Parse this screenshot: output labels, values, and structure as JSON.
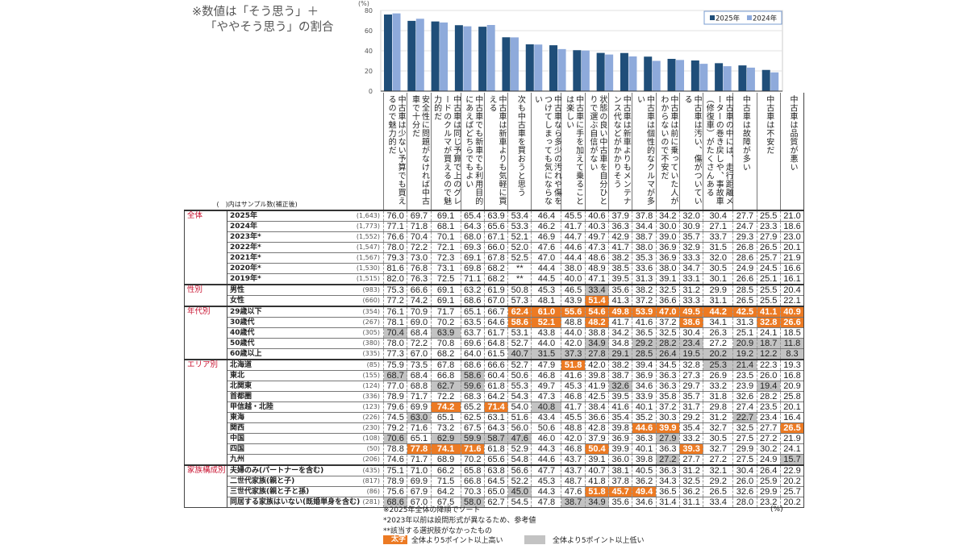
{
  "note": {
    "line1": "※数値は「そう思う」＋",
    "line2": "「ややそう思う」の割合"
  },
  "colors": {
    "bar2025": "#1f4e79",
    "bar2024": "#8eaadb",
    "high": "#ec7a23",
    "low": "#c3c3c3",
    "group": "#c8102e"
  },
  "chart_data": {
    "type": "bar",
    "yunit": "(%)",
    "ylim": [
      0,
      80
    ],
    "yticks": [
      "0",
      "20",
      "40",
      "60",
      "80"
    ],
    "grid": true,
    "legend_position": "top-right",
    "categories": [
      "中古車は少ない予算でも買えるので魅力的だ",
      "安全性に問題がなければ中古車で十分だ",
      "中古車は同じ予算で上のグレードのクルマが買えるので魅力的だ",
      "中古車でも新車でも利用目的にあえばどちらでもよい",
      "中古車は新車よりも気軽に買える",
      "次も中古車を買おうと思う",
      "中古車なら多少の汚れや傷をつけてしまっても気にならない",
      "中古車に手を加えて乗ることは楽しい",
      "状態の良い中古車を自分ひとりで選ぶ自信がない",
      "中古車は新車よりもメンテナンス代などがかかりそう",
      "中古車は個性的なクルマが多い",
      "中古車は前に乗っていた人がわからないので不安だ",
      "中古車は汚い、傷がついている",
      "中古車の中には、走行距離メーターの巻き戻しや、事故車（修復車）がたくさんある",
      "中古車は故障が多い",
      "中古車は不安だ",
      "中古車は品質が悪い"
    ],
    "series": [
      {
        "name": "2025年",
        "values": [
          76.0,
          69.7,
          69.1,
          65.4,
          63.9,
          53.4,
          46.4,
          45.5,
          40.6,
          37.9,
          37.8,
          34.2,
          32.0,
          30.4,
          27.7,
          25.5,
          21.0
        ]
      },
      {
        "name": "2024年",
        "values": [
          77.1,
          71.8,
          68.1,
          64.3,
          65.6,
          53.3,
          46.2,
          41.7,
          40.3,
          36.3,
          34.4,
          30.0,
          30.9,
          27.1,
          24.7,
          23.3,
          18.6
        ]
      }
    ]
  },
  "table": {
    "header_label": "(　)内はサンプル数(補正後)",
    "groups": [
      {
        "name": "全体",
        "rows": [
          {
            "label": "2025年",
            "n": "(1,643)",
            "v": [
              "76.0",
              "69.7",
              "69.1",
              "65.4",
              "63.9",
              "53.4",
              "46.4",
              "45.5",
              "40.6",
              "37.9",
              "37.8",
              "34.2",
              "32.0",
              "30.4",
              "27.7",
              "25.5",
              "21.0"
            ],
            "hl": "................."
          },
          {
            "label": "2024年",
            "n": "(1,773)",
            "v": [
              "77.1",
              "71.8",
              "68.1",
              "64.3",
              "65.6",
              "53.3",
              "46.2",
              "41.7",
              "40.3",
              "36.3",
              "34.4",
              "30.0",
              "30.9",
              "27.1",
              "24.7",
              "23.3",
              "18.6"
            ],
            "hl": "................."
          },
          {
            "label": "2023年*",
            "n": "(1,552)",
            "v": [
              "76.6",
              "70.4",
              "70.1",
              "68.0",
              "67.1",
              "52.1",
              "46.9",
              "44.7",
              "49.7",
              "42.9",
              "38.7",
              "39.0",
              "35.7",
              "33.7",
              "29.3",
              "27.9",
              "23.0"
            ],
            "hl": "................."
          },
          {
            "label": "2022年*",
            "n": "(1,547)",
            "v": [
              "78.0",
              "72.2",
              "72.1",
              "69.3",
              "66.0",
              "52.0",
              "47.6",
              "44.6",
              "47.3",
              "41.7",
              "38.0",
              "36.9",
              "32.9",
              "31.5",
              "26.8",
              "26.5",
              "20.1"
            ],
            "hl": "................."
          },
          {
            "label": "2021年*",
            "n": "(1,567)",
            "v": [
              "79.3",
              "73.0",
              "72.3",
              "69.1",
              "67.8",
              "52.5",
              "47.0",
              "44.4",
              "48.6",
              "38.2",
              "35.3",
              "36.9",
              "33.3",
              "32.0",
              "28.6",
              "25.7",
              "21.9"
            ],
            "hl": "................."
          },
          {
            "label": "2020年*",
            "n": "(1,530)",
            "v": [
              "81.6",
              "76.8",
              "73.1",
              "69.8",
              "68.2",
              "**",
              "44.4",
              "38.0",
              "48.9",
              "38.5",
              "33.6",
              "38.0",
              "34.7",
              "30.5",
              "24.9",
              "24.5",
              "16.6"
            ],
            "hl": "................."
          },
          {
            "label": "2019年*",
            "n": "(1,515)",
            "v": [
              "82.0",
              "76.3",
              "72.5",
              "71.1",
              "68.2",
              "**",
              "44.5",
              "40.0",
              "47.1",
              "39.5",
              "31.3",
              "39.1",
              "33.1",
              "30.1",
              "26.6",
              "25.1",
              "16.1"
            ],
            "hl": "................."
          }
        ]
      },
      {
        "name": "性別",
        "rows": [
          {
            "label": "男性",
            "n": "(983)",
            "v": [
              "75.3",
              "66.6",
              "69.1",
              "63.2",
              "61.9",
              "50.8",
              "45.3",
              "46.5",
              "33.4",
              "35.6",
              "38.2",
              "32.5",
              "31.2",
              "29.9",
              "28.5",
              "25.5",
              "20.4"
            ],
            "hl": "........g........"
          },
          {
            "label": "女性",
            "n": "(660)",
            "v": [
              "77.2",
              "74.2",
              "69.1",
              "68.6",
              "67.0",
              "57.3",
              "48.1",
              "43.9",
              "51.4",
              "41.3",
              "37.2",
              "36.6",
              "33.3",
              "31.1",
              "26.5",
              "25.5",
              "22.1"
            ],
            "hl": "........o........"
          }
        ]
      },
      {
        "name": "年代別",
        "rows": [
          {
            "label": "29歳以下",
            "n": "(354)",
            "v": [
              "76.1",
              "70.9",
              "71.7",
              "65.1",
              "66.7",
              "62.4",
              "61.0",
              "55.6",
              "54.6",
              "49.8",
              "53.9",
              "47.0",
              "49.5",
              "44.2",
              "42.5",
              "41.1",
              "40.9"
            ],
            "hl": ".....oooooooooooo"
          },
          {
            "label": "30歳代",
            "n": "(267)",
            "v": [
              "78.1",
              "69.0",
              "70.2",
              "63.5",
              "64.6",
              "58.6",
              "52.1",
              "48.8",
              "48.2",
              "41.7",
              "41.6",
              "37.2",
              "38.6",
              "34.1",
              "31.3",
              "32.8",
              "26.6"
            ],
            "hl": ".....oo.o...o..oo"
          },
          {
            "label": "40歳代",
            "n": "(305)",
            "v": [
              "70.4",
              "68.4",
              "63.9",
              "63.7",
              "61.7",
              "53.1",
              "43.8",
              "44.0",
              "38.8",
              "34.2",
              "36.5",
              "32.5",
              "30.4",
              "26.3",
              "25.1",
              "24.1",
              "18.5"
            ],
            "hl": "g.g.............."
          },
          {
            "label": "50歳代",
            "n": "(380)",
            "v": [
              "78.0",
              "72.2",
              "70.8",
              "69.6",
              "64.8",
              "52.7",
              "44.0",
              "42.0",
              "34.9",
              "34.8",
              "29.2",
              "28.2",
              "23.4",
              "27.2",
              "20.9",
              "18.7",
              "11.8"
            ],
            "hl": "........g.ggg.ggg"
          },
          {
            "label": "60歳以上",
            "n": "(335)",
            "v": [
              "77.3",
              "67.0",
              "68.2",
              "64.0",
              "61.5",
              "40.7",
              "31.5",
              "37.3",
              "27.8",
              "29.1",
              "28.5",
              "26.4",
              "19.5",
              "20.2",
              "19.2",
              "12.2",
              "8.3"
            ],
            "hl": ".....gggggggggggg"
          }
        ]
      },
      {
        "name": "エリア別",
        "rows": [
          {
            "label": "北海道",
            "n": "(85)",
            "v": [
              "75.9",
              "73.5",
              "67.8",
              "68.6",
              "66.6",
              "52.7",
              "47.9",
              "51.8",
              "42.0",
              "38.2",
              "39.4",
              "34.5",
              "32.8",
              "25.3",
              "21.4",
              "22.3",
              "19.3"
            ],
            "hl": ".......o.....gg.."
          },
          {
            "label": "東北",
            "n": "(155)",
            "v": [
              "68.7",
              "68.4",
              "66.8",
              "58.6",
              "60.4",
              "50.6",
              "46.8",
              "41.6",
              "39.8",
              "38.7",
              "36.9",
              "36.3",
              "27.3",
              "26.9",
              "23.5",
              "26.0",
              "16.8"
            ],
            "hl": "g..g............."
          },
          {
            "label": "北関東",
            "n": "(124)",
            "v": [
              "77.0",
              "68.8",
              "62.7",
              "59.6",
              "61.8",
              "55.3",
              "49.7",
              "45.3",
              "41.9",
              "32.6",
              "34.6",
              "36.3",
              "29.7",
              "33.2",
              "23.9",
              "19.4",
              "20.9"
            ],
            "hl": "..gg.....g.....g."
          },
          {
            "label": "首都圏",
            "n": "(336)",
            "v": [
              "78.9",
              "71.7",
              "72.2",
              "68.3",
              "64.2",
              "54.3",
              "47.3",
              "46.8",
              "42.5",
              "39.5",
              "33.9",
              "35.8",
              "35.7",
              "31.8",
              "32.6",
              "28.2",
              "25.8"
            ],
            "hl": "................."
          },
          {
            "label": "甲信越・北陸",
            "n": "(123)",
            "v": [
              "79.6",
              "69.9",
              "74.2",
              "65.2",
              "71.4",
              "54.0",
              "40.8",
              "41.7",
              "38.4",
              "41.6",
              "40.1",
              "37.2",
              "31.7",
              "29.8",
              "27.4",
              "23.5",
              "20.1"
            ],
            "hl": "..o.o.g.........."
          },
          {
            "label": "東海",
            "n": "(226)",
            "v": [
              "74.5",
              "63.0",
              "65.1",
              "62.5",
              "63.1",
              "51.6",
              "43.4",
              "45.5",
              "36.6",
              "35.4",
              "35.2",
              "30.3",
              "29.2",
              "31.2",
              "22.7",
              "23.4",
              "16.4"
            ],
            "hl": ".g............g.."
          },
          {
            "label": "関西",
            "n": "(230)",
            "v": [
              "79.2",
              "71.6",
              "73.2",
              "67.5",
              "64.3",
              "56.0",
              "50.6",
              "48.8",
              "42.8",
              "39.8",
              "44.6",
              "39.9",
              "35.4",
              "32.7",
              "32.5",
              "27.7",
              "26.5"
            ],
            "hl": "..........oo....o"
          },
          {
            "label": "中国",
            "n": "(108)",
            "v": [
              "70.6",
              "65.1",
              "62.9",
              "59.9",
              "58.7",
              "47.6",
              "46.0",
              "42.0",
              "37.9",
              "36.9",
              "36.3",
              "27.9",
              "33.2",
              "30.5",
              "27.5",
              "27.2",
              "21.9"
            ],
            "hl": "g.gggg.....g....."
          },
          {
            "label": "四国",
            "n": "(50)",
            "v": [
              "78.8",
              "77.8",
              "74.1",
              "71.6",
              "61.8",
              "52.9",
              "44.3",
              "46.8",
              "50.4",
              "39.9",
              "40.1",
              "36.3",
              "39.3",
              "32.7",
              "29.9",
              "30.2",
              "24.1"
            ],
            "hl": ".ooo....o...o...."
          },
          {
            "label": "九州",
            "n": "(206)",
            "v": [
              "74.6",
              "71.7",
              "68.9",
              "70.2",
              "65.6",
              "54.8",
              "44.6",
              "43.7",
              "39.1",
              "36.0",
              "39.8",
              "27.2",
              "27.7",
              "27.2",
              "27.5",
              "24.9",
              "15.7"
            ],
            "hl": "...........g....g"
          }
        ]
      },
      {
        "name": "家族構成別",
        "rows": [
          {
            "label": "夫婦のみ(パートナーを含む)",
            "n": "(435)",
            "v": [
              "75.1",
              "71.0",
              "66.2",
              "65.8",
              "63.8",
              "56.6",
              "47.7",
              "43.7",
              "40.7",
              "38.1",
              "40.5",
              "36.3",
              "31.2",
              "32.1",
              "30.4",
              "26.4",
              "22.9"
            ],
            "hl": "................."
          },
          {
            "label": "二世代家族(親と子)",
            "n": "(817)",
            "v": [
              "78.9",
              "69.9",
              "71.5",
              "66.8",
              "64.5",
              "52.2",
              "45.3",
              "48.7",
              "41.8",
              "37.8",
              "36.2",
              "34.3",
              "32.5",
              "29.2",
              "26.0",
              "25.9",
              "20.2"
            ],
            "hl": "................."
          },
          {
            "label": "三世代家族(親と子と孫)",
            "n": "(86)",
            "v": [
              "75.6",
              "67.9",
              "64.2",
              "70.3",
              "65.0",
              "45.0",
              "44.3",
              "47.6",
              "51.8",
              "45.7",
              "49.4",
              "36.5",
              "36.2",
              "26.5",
              "32.6",
              "29.9",
              "25.7"
            ],
            "hl": ".....g..ooo......"
          },
          {
            "label": "同居する家族はいない(既婚単身を含む)",
            "n": "(281)",
            "v": [
              "68.6",
              "67.0",
              "67.5",
              "58.0",
              "62.7",
              "54.5",
              "47.8",
              "38.7",
              "34.9",
              "35.6",
              "34.6",
              "31.4",
              "31.1",
              "33.4",
              "28.0",
              "23.2",
              "20.2"
            ],
            "hl": "g..g...gg........"
          }
        ]
      }
    ]
  },
  "footer": {
    "notes": [
      "※2025年全体の降順でソート",
      "*2023年以前は設問形式が異なるため、参考値",
      "**該当する選択肢がなかったもの"
    ],
    "unit": "(%)",
    "legend_high_swatch": "太字",
    "legend_high": "全体より5ポイント以上高い",
    "legend_low": "全体より5ポイント以上低い"
  }
}
